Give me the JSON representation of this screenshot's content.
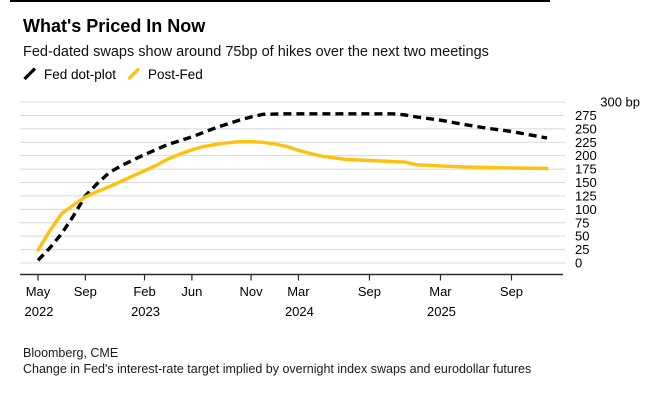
{
  "header": {
    "title": "What's Priced In Now",
    "subtitle": "Fed-dated swaps show around 75bp of hikes over the next two meetings"
  },
  "legend": [
    {
      "label": "Fed dot-plot",
      "color": "#000000",
      "style": "dashed"
    },
    {
      "label": "Post-Fed",
      "color": "#FFC10E",
      "style": "solid"
    }
  ],
  "chart_data": {
    "type": "line",
    "title": "What's Priced In Now",
    "x_unit": "months since May 2022",
    "ylim": [
      0,
      300
    ],
    "y_tick_step": 25,
    "y_axis_top_label": "300 bp",
    "grid": "horizontal",
    "legend_position": "top-left",
    "x_ticks": [
      {
        "m": 0,
        "month": "May",
        "year": "2022"
      },
      {
        "m": 4,
        "month": "Sep"
      },
      {
        "m": 9,
        "month": "Feb",
        "year": "2023"
      },
      {
        "m": 13,
        "month": "Jun"
      },
      {
        "m": 18,
        "month": "Nov"
      },
      {
        "m": 22,
        "month": "Mar",
        "year": "2024"
      },
      {
        "m": 28,
        "month": "Sep"
      },
      {
        "m": 34,
        "month": "Mar",
        "year": "2025"
      },
      {
        "m": 40,
        "month": "Sep"
      }
    ],
    "series": [
      {
        "name": "Fed dot-plot",
        "color": "#000000",
        "dash": "8 5",
        "points": [
          [
            0,
            5
          ],
          [
            1,
            28
          ],
          [
            2,
            55
          ],
          [
            3,
            88
          ],
          [
            4,
            125
          ],
          [
            5,
            148
          ],
          [
            6,
            168
          ],
          [
            7,
            181
          ],
          [
            9,
            202
          ],
          [
            11,
            221
          ],
          [
            13,
            235
          ],
          [
            15,
            252
          ],
          [
            17,
            266
          ],
          [
            18,
            272
          ],
          [
            19,
            277
          ],
          [
            21,
            278
          ],
          [
            24,
            278
          ],
          [
            26,
            278
          ],
          [
            28,
            278
          ],
          [
            30,
            278
          ],
          [
            31,
            276
          ],
          [
            32,
            272
          ],
          [
            34,
            266
          ],
          [
            36,
            258
          ],
          [
            38,
            251
          ],
          [
            40,
            245
          ],
          [
            43,
            233
          ]
        ]
      },
      {
        "name": "Post-Fed",
        "color": "#FFC10E",
        "dash": null,
        "points": [
          [
            0,
            24
          ],
          [
            1,
            60
          ],
          [
            2,
            92
          ],
          [
            3,
            108
          ],
          [
            4,
            123
          ],
          [
            5,
            133
          ],
          [
            6,
            142
          ],
          [
            7,
            152
          ],
          [
            8,
            162
          ],
          [
            9,
            172
          ],
          [
            10,
            182
          ],
          [
            11,
            194
          ],
          [
            12,
            203
          ],
          [
            13,
            211
          ],
          [
            14,
            217
          ],
          [
            15,
            221
          ],
          [
            16,
            224
          ],
          [
            17,
            226
          ],
          [
            18,
            226
          ],
          [
            19,
            225
          ],
          [
            20,
            222
          ],
          [
            21,
            217
          ],
          [
            22,
            210
          ],
          [
            23,
            204
          ],
          [
            24,
            199
          ],
          [
            25,
            196
          ],
          [
            26,
            193
          ],
          [
            27,
            192
          ],
          [
            28,
            191
          ],
          [
            29,
            190
          ],
          [
            30,
            189
          ],
          [
            31,
            188
          ],
          [
            32,
            183
          ],
          [
            33,
            182
          ],
          [
            34,
            181
          ],
          [
            36,
            179
          ],
          [
            38,
            178
          ],
          [
            40,
            177
          ],
          [
            43,
            176
          ]
        ]
      }
    ]
  },
  "footer": {
    "source": "Bloomberg, CME",
    "note": "Change in Fed's interest-rate target implied by overnight index swaps and eurodollar futures"
  }
}
